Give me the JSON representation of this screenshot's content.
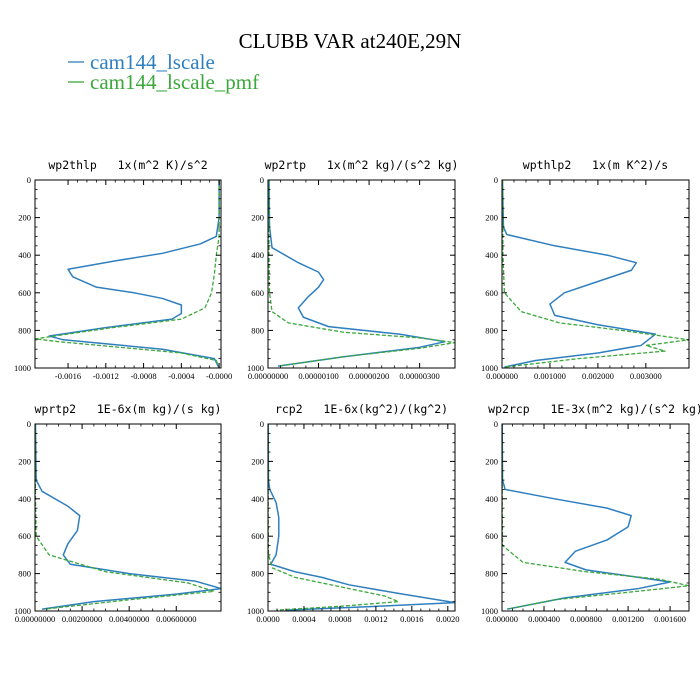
{
  "figure": {
    "title": "CLUBB VAR at240E,29N",
    "colors": {
      "series_0": "#2f7fbf",
      "series_1": "#3aa83a",
      "axes": "#000000"
    }
  },
  "chart_data": [
    {
      "type": "line",
      "title": "wp2thlp   1x(m^2 K)/s^2",
      "xlim": [
        -0.00195,
        2e-05
      ],
      "ylim": [
        1000,
        0
      ],
      "xticks": [
        -0.0016,
        -0.0012,
        -0.0008,
        -0.0004,
        0
      ],
      "xtick_labels": [
        "-0.0016",
        "-0.0012",
        "-0.0008",
        "-0.0004",
        "-0.0000"
      ],
      "yticks": [
        0,
        200,
        400,
        600,
        800,
        1000
      ],
      "series": [
        {
          "name": "cam144_lscale",
          "style": "solid",
          "points": [
            [
              -0.0,
              0
            ],
            [
              -0.0,
              200
            ],
            [
              -3e-05,
              300
            ],
            [
              -0.0002,
              340
            ],
            [
              -0.0006,
              390
            ],
            [
              -0.0011,
              430
            ],
            [
              -0.0016,
              475
            ],
            [
              -0.00155,
              515
            ],
            [
              -0.0013,
              570
            ],
            [
              -0.0009,
              600
            ],
            [
              -0.0006,
              630
            ],
            [
              -0.0004,
              665
            ],
            [
              -0.0004,
              710
            ],
            [
              -0.0005,
              740
            ],
            [
              -0.0012,
              785
            ],
            [
              -0.0018,
              830
            ],
            [
              -0.00165,
              850
            ],
            [
              -0.0006,
              900
            ],
            [
              -5e-05,
              950
            ],
            [
              0,
              1000
            ]
          ]
        },
        {
          "name": "cam144_lscale_pmf",
          "style": "dashed",
          "points": [
            [
              -0.0,
              0
            ],
            [
              -0.0,
              300
            ],
            [
              -3e-05,
              400
            ],
            [
              -5e-05,
              500
            ],
            [
              -8e-05,
              600
            ],
            [
              -0.00015,
              680
            ],
            [
              -0.0004,
              740
            ],
            [
              -0.0012,
              790
            ],
            [
              -0.00195,
              845
            ],
            [
              -0.0017,
              860
            ],
            [
              -0.0004,
              920
            ],
            [
              -3e-05,
              960
            ],
            [
              0,
              1000
            ]
          ]
        }
      ]
    },
    {
      "type": "line",
      "title": "wp2rtp   1x(m^2 kg)/(s^2 kg)",
      "xlim": [
        0,
        3.7e-06
      ],
      "ylim": [
        1000,
        0
      ],
      "xticks": [
        0,
        1e-06,
        2e-06,
        3e-06
      ],
      "xtick_labels": [
        "0.00000000",
        "0.00000100",
        "0.00000200",
        "0.00000300"
      ],
      "yticks": [
        0,
        200,
        400,
        600,
        800,
        1000
      ],
      "series": [
        {
          "name": "cam144_lscale",
          "style": "solid",
          "points": [
            [
              2e-08,
              0
            ],
            [
              3e-08,
              250
            ],
            [
              8e-08,
              360
            ],
            [
              6e-07,
              440
            ],
            [
              1e-06,
              490
            ],
            [
              1.1e-06,
              530
            ],
            [
              1e-06,
              570
            ],
            [
              8e-07,
              620
            ],
            [
              6e-07,
              680
            ],
            [
              7e-07,
              730
            ],
            [
              1.2e-06,
              780
            ],
            [
              2.6e-06,
              820
            ],
            [
              3.5e-06,
              860
            ],
            [
              3e-06,
              890
            ],
            [
              1.5e-06,
              940
            ],
            [
              2e-07,
              990
            ]
          ]
        },
        {
          "name": "cam144_lscale_pmf",
          "style": "dashed",
          "points": [
            [
              1e-08,
              0
            ],
            [
              2e-08,
              400
            ],
            [
              3e-08,
              600
            ],
            [
              8e-08,
              700
            ],
            [
              4e-07,
              760
            ],
            [
              1.5e-06,
              810
            ],
            [
              3e-06,
              840
            ],
            [
              3.7e-06,
              865
            ],
            [
              3e-06,
              895
            ],
            [
              1.5e-06,
              940
            ],
            [
              2e-07,
              990
            ]
          ]
        }
      ]
    },
    {
      "type": "line",
      "title": "wpthlp2   1x(m K^2)/s",
      "xlim": [
        0,
        0.0039
      ],
      "ylim": [
        1000,
        0
      ],
      "xticks": [
        0,
        0.001,
        0.002,
        0.003
      ],
      "xtick_labels": [
        "0.000000",
        "0.001000",
        "0.002000",
        "0.003000"
      ],
      "yticks": [
        0,
        200,
        400,
        600,
        800,
        1000
      ],
      "series": [
        {
          "name": "cam144_lscale",
          "style": "solid",
          "points": [
            [
              1e-05,
              0
            ],
            [
              3e-05,
              250
            ],
            [
              0.0001,
              290
            ],
            [
              0.0011,
              350
            ],
            [
              0.0022,
              400
            ],
            [
              0.0028,
              440
            ],
            [
              0.0027,
              480
            ],
            [
              0.002,
              540
            ],
            [
              0.0013,
              600
            ],
            [
              0.001,
              660
            ],
            [
              0.0011,
              720
            ],
            [
              0.002,
              770
            ],
            [
              0.0032,
              820
            ],
            [
              0.0029,
              880
            ],
            [
              0.002,
              920
            ],
            [
              0.0007,
              960
            ],
            [
              5e-05,
              995
            ]
          ]
        },
        {
          "name": "cam144_lscale_pmf",
          "style": "dashed",
          "points": [
            [
              1e-05,
              0
            ],
            [
              2e-05,
              400
            ],
            [
              5e-05,
              600
            ],
            [
              0.0004,
              700
            ],
            [
              0.0012,
              760
            ],
            [
              0.0025,
              800
            ],
            [
              0.0039,
              850
            ],
            [
              0.003,
              880
            ],
            [
              0.0034,
              910
            ],
            [
              0.0016,
              950
            ],
            [
              5e-05,
              995
            ]
          ]
        }
      ]
    },
    {
      "type": "line",
      "title": "wprtp2   1E-6x(m kg)/(s kg)",
      "xlim": [
        0,
        0.0079
      ],
      "ylim": [
        1000,
        0
      ],
      "xticks": [
        0,
        0.002,
        0.004,
        0.006
      ],
      "xtick_labels": [
        "0.00000000",
        "0.00200000",
        "0.00400000",
        "0.00600000"
      ],
      "yticks": [
        0,
        200,
        400,
        600,
        800,
        1000
      ],
      "series": [
        {
          "name": "cam144_lscale",
          "style": "solid",
          "points": [
            [
              2e-05,
              0
            ],
            [
              5e-05,
              300
            ],
            [
              0.0003,
              360
            ],
            [
              0.0014,
              440
            ],
            [
              0.0019,
              490
            ],
            [
              0.0018,
              570
            ],
            [
              0.0014,
              640
            ],
            [
              0.0012,
              700
            ],
            [
              0.0015,
              750
            ],
            [
              0.004,
              800
            ],
            [
              0.0068,
              840
            ],
            [
              0.0079,
              880
            ],
            [
              0.006,
              910
            ],
            [
              0.0025,
              950
            ],
            [
              0.0003,
              990
            ]
          ]
        },
        {
          "name": "cam144_lscale_pmf",
          "style": "dashed",
          "points": [
            [
              1e-05,
              0
            ],
            [
              2e-05,
              400
            ],
            [
              5e-05,
              600
            ],
            [
              0.0006,
              700
            ],
            [
              0.003,
              790
            ],
            [
              0.0065,
              850
            ],
            [
              0.0076,
              895
            ],
            [
              0.004,
              940
            ],
            [
              0.0004,
              990
            ]
          ]
        }
      ]
    },
    {
      "type": "line",
      "title": "rcp2   1E-6x(kg^2)/(kg^2)",
      "xlim": [
        0,
        0.00208
      ],
      "ylim": [
        1000,
        0
      ],
      "xticks": [
        0,
        0.0004,
        0.0008,
        0.0012,
        0.0016,
        0.002
      ],
      "xtick_labels": [
        "0.0000",
        "0.0004",
        "0.0008",
        "0.0012",
        "0.0016",
        "0.0020"
      ],
      "yticks": [
        0,
        200,
        400,
        600,
        800,
        1000
      ],
      "series": [
        {
          "name": "cam144_lscale",
          "style": "solid",
          "points": [
            [
              2e-06,
              0
            ],
            [
              5e-06,
              300
            ],
            [
              2e-05,
              350
            ],
            [
              9e-05,
              420
            ],
            [
              0.00012,
              500
            ],
            [
              0.00012,
              600
            ],
            [
              9e-05,
              700
            ],
            [
              3e-05,
              750
            ],
            [
              0.0003,
              790
            ],
            [
              0.0006,
              820
            ],
            [
              0.0009,
              860
            ],
            [
              0.0015,
              910
            ],
            [
              0.00208,
              955
            ],
            [
              0.0012,
              975
            ],
            [
              0.0002,
              995
            ]
          ]
        },
        {
          "name": "cam144_lscale_pmf",
          "style": "dashed",
          "points": [
            [
              1e-06,
              0
            ],
            [
              2e-06,
              500
            ],
            [
              5e-06,
              700
            ],
            [
              5e-05,
              770
            ],
            [
              0.0003,
              820
            ],
            [
              0.0008,
              870
            ],
            [
              0.0013,
              920
            ],
            [
              0.00145,
              950
            ],
            [
              0.0008,
              975
            ],
            [
              0.0001,
              995
            ]
          ]
        }
      ]
    },
    {
      "type": "line",
      "title": "wp2rcp   1E-3x(m^2 kg)/(s^2 kg)",
      "xlim": [
        0,
        0.00178
      ],
      "ylim": [
        1000,
        0
      ],
      "xticks": [
        0,
        0.0004,
        0.0008,
        0.0012,
        0.0016
      ],
      "xtick_labels": [
        "0.000000",
        "0.000400",
        "0.000800",
        "0.001200",
        "0.001600"
      ],
      "yticks": [
        0,
        200,
        400,
        600,
        800,
        1000
      ],
      "series": [
        {
          "name": "cam144_lscale",
          "style": "solid",
          "points": [
            [
              2e-06,
              0
            ],
            [
              5e-06,
              300
            ],
            [
              3e-05,
              350
            ],
            [
              0.0005,
              400
            ],
            [
              0.001,
              450
            ],
            [
              0.00123,
              490
            ],
            [
              0.0012,
              550
            ],
            [
              0.001,
              620
            ],
            [
              0.0007,
              680
            ],
            [
              0.0006,
              740
            ],
            [
              0.0008,
              780
            ],
            [
              0.0013,
              820
            ],
            [
              0.0016,
              845
            ],
            [
              0.0013,
              880
            ],
            [
              0.0006,
              930
            ],
            [
              5e-05,
              990
            ]
          ]
        },
        {
          "name": "cam144_lscale_pmf",
          "style": "dashed",
          "points": [
            [
              1e-06,
              0
            ],
            [
              2e-06,
              450
            ],
            [
              5e-06,
              650
            ],
            [
              0.0002,
              740
            ],
            [
              0.0008,
              790
            ],
            [
              0.0015,
              830
            ],
            [
              0.00178,
              865
            ],
            [
              0.0012,
              900
            ],
            [
              0.0005,
              940
            ],
            [
              5e-05,
              990
            ]
          ]
        }
      ]
    }
  ]
}
